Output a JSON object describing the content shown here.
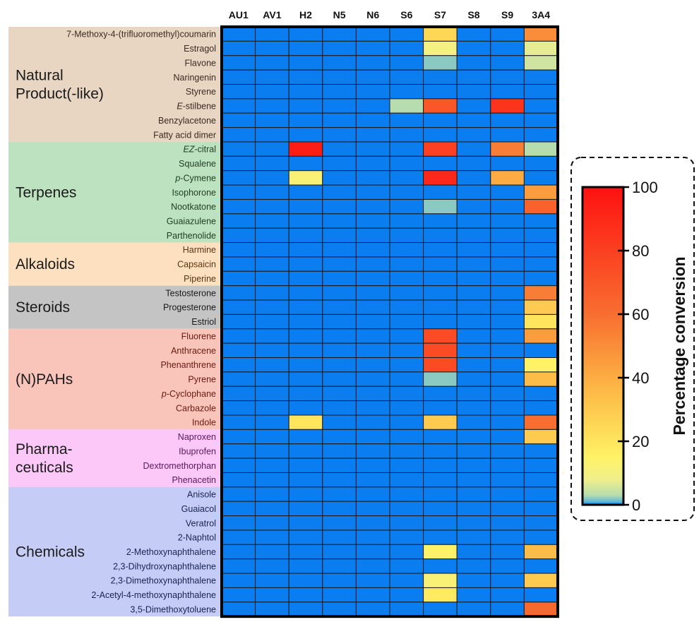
{
  "chart_data": {
    "type": "heatmap",
    "title": "",
    "columns": [
      "AU1",
      "AV1",
      "H2",
      "N5",
      "N6",
      "S6",
      "S7",
      "S8",
      "S9",
      "3A4"
    ],
    "groups": [
      {
        "label_lines": [
          "Natural",
          "Product(-like)"
        ],
        "color": "#e8d6c3",
        "text_color": "#3a2a20",
        "rows": [
          {
            "label": "7-Methoxy-4-(trifluoromethyl)coumarin",
            "values": [
              0,
              0,
              0,
              0,
              0,
              0,
              25,
              0,
              0,
              50
            ]
          },
          {
            "label": "Estragol",
            "values": [
              0,
              0,
              0,
              0,
              0,
              0,
              10,
              0,
              0,
              7
            ]
          },
          {
            "label": "Flavone",
            "values": [
              0,
              0,
              0,
              0,
              0,
              0,
              2,
              0,
              0,
              5
            ]
          },
          {
            "label": "Naringenin",
            "values": [
              0,
              0,
              0,
              0,
              0,
              0,
              0,
              0,
              0,
              0
            ]
          },
          {
            "label": "Styrene",
            "values": [
              0,
              0,
              0,
              0,
              0,
              0,
              0,
              0,
              0,
              0
            ]
          },
          {
            "label": "E-stilbene",
            "italic_prefix": "E",
            "rest": "-stilbene",
            "values": [
              0,
              0,
              0,
              0,
              0,
              3,
              70,
              0,
              85,
              0
            ]
          },
          {
            "label": "Benzylacetone",
            "values": [
              0,
              0,
              0,
              0,
              0,
              0,
              0,
              0,
              0,
              0
            ]
          },
          {
            "label": "Fatty acid dimer",
            "values": [
              0,
              0,
              0,
              0,
              0,
              0,
              0,
              0,
              0,
              0
            ]
          }
        ]
      },
      {
        "label_lines": [
          "Terpenes"
        ],
        "color": "#bde2c0",
        "text_color": "#1f3d22",
        "rows": [
          {
            "label": "EZ-citral",
            "italic_prefix": "EZ",
            "rest": "-citral",
            "values": [
              0,
              0,
              95,
              0,
              0,
              0,
              80,
              0,
              55,
              3
            ]
          },
          {
            "label": "Squalene",
            "values": [
              0,
              0,
              0,
              0,
              0,
              0,
              0,
              0,
              0,
              0
            ]
          },
          {
            "label": "p-Cymene",
            "italic_prefix": "p",
            "rest": "-Cymene",
            "values": [
              0,
              0,
              12,
              0,
              0,
              0,
              90,
              0,
              40,
              0
            ]
          },
          {
            "label": "Isophorone",
            "values": [
              0,
              0,
              0,
              0,
              0,
              0,
              0,
              0,
              0,
              45
            ]
          },
          {
            "label": "Nootkatone",
            "values": [
              0,
              0,
              0,
              0,
              0,
              0,
              2,
              0,
              0,
              65
            ]
          },
          {
            "label": "Guaiazulene",
            "values": [
              0,
              0,
              0,
              0,
              0,
              0,
              0,
              0,
              0,
              0
            ]
          },
          {
            "label": "Parthenolide",
            "values": [
              0,
              0,
              0,
              0,
              0,
              0,
              0,
              0,
              0,
              0
            ]
          }
        ]
      },
      {
        "label_lines": [
          "Alkaloids"
        ],
        "color": "#fde0c0",
        "text_color": "#5a3410",
        "rows": [
          {
            "label": "Harmine",
            "values": [
              0,
              0,
              0,
              0,
              0,
              0,
              0,
              0,
              0,
              0
            ]
          },
          {
            "label": "Capsaicin",
            "values": [
              0,
              0,
              0,
              0,
              0,
              0,
              0,
              0,
              0,
              0
            ]
          },
          {
            "label": "Piperine",
            "values": [
              0,
              0,
              0,
              0,
              0,
              0,
              0,
              0,
              0,
              0
            ]
          }
        ]
      },
      {
        "label_lines": [
          "Steroids"
        ],
        "color": "#c4c4c4",
        "text_color": "#1a1a1a",
        "rows": [
          {
            "label": "Testosterone",
            "values": [
              0,
              0,
              0,
              0,
              0,
              0,
              0,
              0,
              0,
              55
            ]
          },
          {
            "label": "Progesterone",
            "values": [
              0,
              0,
              0,
              0,
              0,
              0,
              0,
              0,
              0,
              30
            ]
          },
          {
            "label": "Estriol",
            "values": [
              0,
              0,
              0,
              0,
              0,
              0,
              0,
              0,
              0,
              20
            ]
          }
        ]
      },
      {
        "label_lines": [
          "(N)PAHs"
        ],
        "color": "#f9c4ba",
        "text_color": "#6a1a10",
        "rows": [
          {
            "label": "Fluorene",
            "values": [
              0,
              0,
              0,
              0,
              0,
              0,
              75,
              0,
              0,
              45
            ]
          },
          {
            "label": "Anthracene",
            "values": [
              0,
              0,
              0,
              0,
              0,
              0,
              75,
              0,
              0,
              0
            ]
          },
          {
            "label": "Phenanthrene",
            "values": [
              0,
              0,
              0,
              0,
              0,
              0,
              75,
              0,
              0,
              15
            ]
          },
          {
            "label": "Pyrene",
            "values": [
              0,
              0,
              0,
              0,
              0,
              0,
              2,
              0,
              0,
              35
            ]
          },
          {
            "label": "p-Cyclophane",
            "italic_prefix": "p",
            "rest": "-Cyclophane",
            "values": [
              0,
              0,
              0,
              0,
              0,
              0,
              0,
              0,
              0,
              0
            ]
          },
          {
            "label": "Carbazole",
            "values": [
              0,
              0,
              0,
              0,
              0,
              0,
              0,
              0,
              0,
              0
            ]
          },
          {
            "label": "Indole",
            "values": [
              0,
              0,
              20,
              0,
              0,
              0,
              30,
              0,
              0,
              60
            ]
          }
        ]
      },
      {
        "label_lines": [
          "Pharma-",
          "ceuticals"
        ],
        "color": "#fbc8f8",
        "text_color": "#5a1a5a",
        "rows": [
          {
            "label": "Naproxen",
            "values": [
              0,
              0,
              0,
              0,
              0,
              0,
              0,
              0,
              0,
              30
            ]
          },
          {
            "label": "Ibuprofen",
            "values": [
              0,
              0,
              0,
              0,
              0,
              0,
              0,
              0,
              0,
              0
            ]
          },
          {
            "label": "Dextromethorphan",
            "values": [
              0,
              0,
              0,
              0,
              0,
              0,
              0,
              0,
              0,
              0
            ]
          },
          {
            "label": "Phenacetin",
            "values": [
              0,
              0,
              0,
              0,
              0,
              0,
              0,
              0,
              0,
              0
            ]
          }
        ]
      },
      {
        "label_lines": [
          "Chemicals"
        ],
        "color": "#c5cdf7",
        "text_color": "#1a2250",
        "rows": [
          {
            "label": "Anisole",
            "values": [
              0,
              0,
              0,
              0,
              0,
              0,
              0,
              0,
              0,
              0
            ]
          },
          {
            "label": "Guaiacol",
            "values": [
              0,
              0,
              0,
              0,
              0,
              0,
              0,
              0,
              0,
              0
            ]
          },
          {
            "label": "Veratrol",
            "values": [
              0,
              0,
              0,
              0,
              0,
              0,
              0,
              0,
              0,
              0
            ]
          },
          {
            "label": "2-Naphtol",
            "values": [
              0,
              0,
              0,
              0,
              0,
              0,
              0,
              0,
              0,
              0
            ]
          },
          {
            "label": "2-Methoxynaphthalene",
            "values": [
              0,
              0,
              0,
              0,
              0,
              0,
              15,
              0,
              0,
              35
            ]
          },
          {
            "label": "2,3-Dihydroxynaphthalene",
            "values": [
              0,
              0,
              0,
              0,
              0,
              0,
              0,
              0,
              0,
              0
            ]
          },
          {
            "label": "2,3-Dimethoxynaphthalene",
            "values": [
              0,
              0,
              0,
              0,
              0,
              0,
              12,
              0,
              0,
              30
            ]
          },
          {
            "label": "2-Acetyl-4-methoxynaphthalene",
            "values": [
              0,
              0,
              0,
              0,
              0,
              0,
              18,
              0,
              0,
              0
            ]
          },
          {
            "label": "3,5-Dimethoxytoluene",
            "values": [
              0,
              0,
              0,
              0,
              0,
              0,
              0,
              0,
              0,
              62
            ]
          }
        ]
      }
    ],
    "colorbar": {
      "title": "Percentage conversion",
      "range": [
        0,
        100
      ],
      "ticks": [
        0,
        20,
        40,
        60,
        80,
        100
      ],
      "stops": [
        {
          "v": 0,
          "color": "#0a7ef0"
        },
        {
          "v": 1,
          "color": "#5fb7d6"
        },
        {
          "v": 3,
          "color": "#b7dcae"
        },
        {
          "v": 8,
          "color": "#f0f08a"
        },
        {
          "v": 15,
          "color": "#fff266"
        },
        {
          "v": 35,
          "color": "#fdbc47"
        },
        {
          "v": 60,
          "color": "#f86e30"
        },
        {
          "v": 100,
          "color": "#ff1111"
        }
      ]
    }
  }
}
